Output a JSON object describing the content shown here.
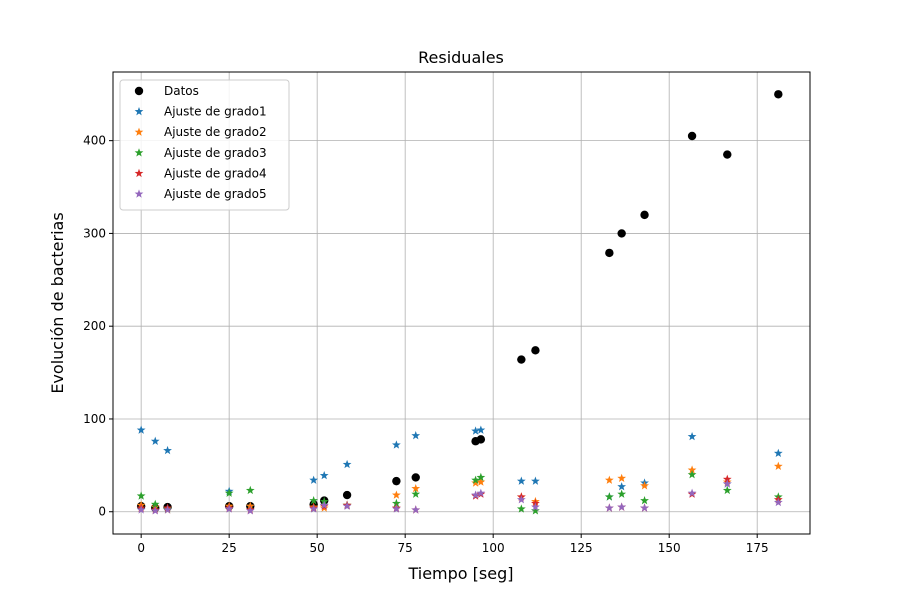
{
  "chart_data": {
    "type": "scatter",
    "title": "Residuales",
    "xlabel": "Tiempo [seg]",
    "ylabel": "Evolución de bacterias",
    "xlim": [
      -8,
      190
    ],
    "ylim": [
      -24,
      474
    ],
    "xticks": [
      0,
      25,
      50,
      75,
      100,
      125,
      150,
      175
    ],
    "yticks": [
      0,
      100,
      200,
      300,
      400
    ],
    "grid": true,
    "legend_position": "top-left",
    "x": [
      0,
      4,
      7.5,
      25,
      31,
      49,
      52,
      58.5,
      72.5,
      78,
      95,
      96.5,
      108,
      112,
      133,
      136.5,
      143,
      156.5,
      166.5,
      181
    ],
    "series": [
      {
        "name": "Datos",
        "marker": "circle",
        "color": "#000000",
        "values": [
          6,
          4,
          5,
          6,
          6,
          8,
          12,
          18,
          33,
          37,
          76,
          78,
          164,
          174,
          279,
          300,
          320,
          405,
          385,
          450
        ]
      },
      {
        "name": "Ajuste de grado1",
        "marker": "star",
        "color": "#1f77b4",
        "values": [
          88,
          76,
          66,
          22,
          6,
          34,
          39,
          51,
          72,
          82,
          87,
          88,
          33,
          33,
          16,
          27,
          31,
          81,
          30,
          63
        ]
      },
      {
        "name": "Ajuste de grado2",
        "marker": "star",
        "color": "#ff7f0e",
        "values": [
          7,
          5,
          2,
          6,
          6,
          5,
          4,
          7,
          18,
          25,
          31,
          32,
          16,
          11,
          34,
          36,
          28,
          45,
          32,
          49
        ]
      },
      {
        "name": "Ajuste de grado3",
        "marker": "star",
        "color": "#2ca02c",
        "values": [
          17,
          8,
          3,
          20,
          23,
          12,
          11,
          7,
          9,
          19,
          34,
          37,
          3,
          1,
          16,
          19,
          12,
          40,
          23,
          16
        ]
      },
      {
        "name": "Ajuste de grado4",
        "marker": "star",
        "color": "#d62728",
        "values": [
          4,
          2,
          4,
          4,
          2,
          4,
          6,
          7,
          4,
          2,
          17,
          19,
          16,
          9,
          4,
          5,
          4,
          19,
          35,
          13
        ]
      },
      {
        "name": "Ajuste de grado5",
        "marker": "star",
        "color": "#9467bd",
        "values": [
          2,
          1,
          2,
          3,
          1,
          3,
          7,
          6,
          3,
          2,
          18,
          20,
          13,
          5,
          4,
          5,
          4,
          20,
          30,
          10
        ]
      }
    ]
  }
}
